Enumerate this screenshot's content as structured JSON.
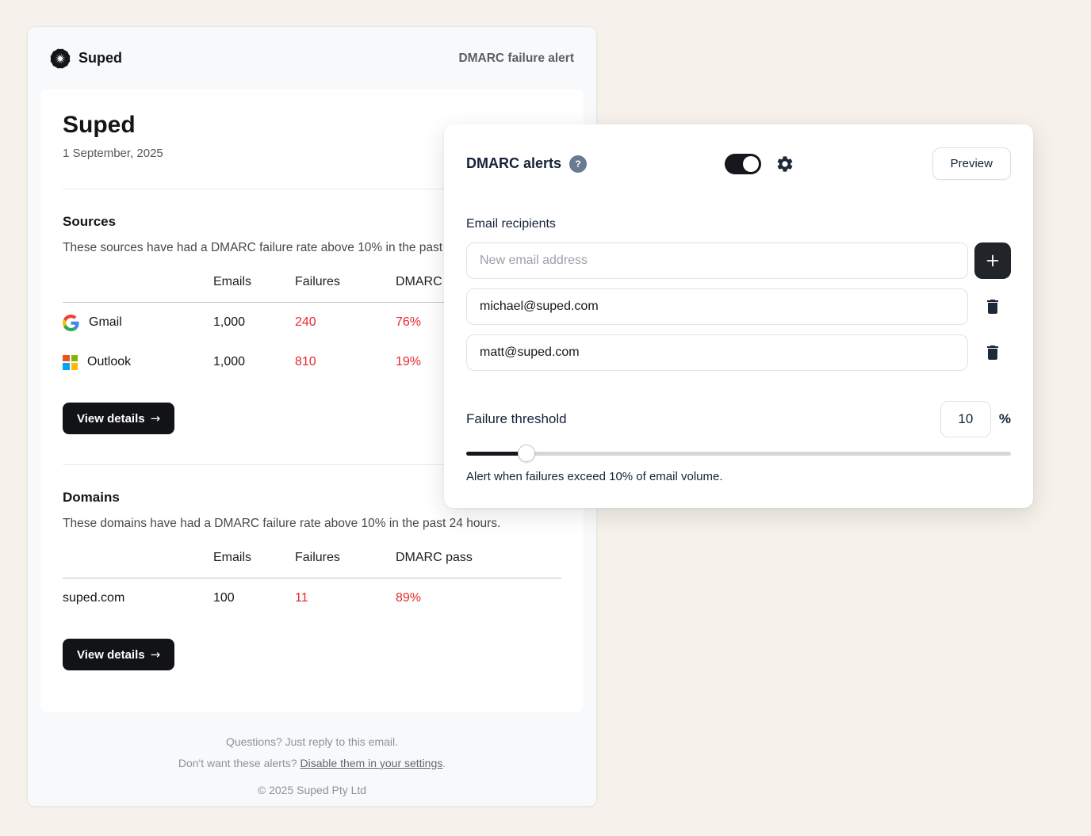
{
  "colors": {
    "page_background": "#f6f1ea",
    "alert_red": "#e8282c",
    "dark_button": "#121316",
    "panel_navy": "#152238",
    "help_badge_slate": "#6b7a90",
    "microsoft_squares": [
      "#f25022",
      "#7fba00",
      "#00a4ef",
      "#ffb900"
    ]
  },
  "ui": {
    "arrow_right": "→",
    "plus": "+"
  },
  "email": {
    "brand": "Suped",
    "header_right": "DMARC failure alert",
    "title": "Suped",
    "date": "1 September, 2025",
    "sources": {
      "heading": "Sources",
      "description": "These sources have had a DMARC failure rate above 10% in the past 24 hours.",
      "columns": [
        "Emails",
        "Failures",
        "DMARC pass"
      ],
      "rows": [
        {
          "name": "Gmail",
          "emails": "1,000",
          "failures": "240",
          "dmarc_pass": "76%"
        },
        {
          "name": "Outlook",
          "emails": "1,000",
          "failures": "810",
          "dmarc_pass": "19%"
        }
      ],
      "view_details_label": "View details"
    },
    "domains": {
      "heading": "Domains",
      "description": "These domains have had a DMARC failure rate above 10% in the past 24 hours.",
      "columns": [
        "Emails",
        "Failures",
        "DMARC pass"
      ],
      "rows": [
        {
          "name": "suped.com",
          "emails": "100",
          "failures": "11",
          "dmarc_pass": "89%"
        }
      ],
      "view_details_label": "View details"
    },
    "footer": {
      "line1": "Questions? Just reply to this email.",
      "line2_prefix": "Don't want these alerts? ",
      "line2_link": "Disable them in your settings",
      "line2_suffix": ".",
      "copyright": "© 2025 Suped Pty Ltd"
    }
  },
  "panel": {
    "title": "DMARC alerts",
    "help_badge": "?",
    "toggle_state": "on",
    "preview_label": "Preview",
    "recipients": {
      "label": "Email recipients",
      "new_placeholder": "New email address",
      "emails": [
        "michael@suped.com",
        "matt@suped.com"
      ]
    },
    "threshold": {
      "label": "Failure threshold",
      "value": "10",
      "unit": "%",
      "slider_percent": 11,
      "help_text": "Alert when failures exceed 10% of email volume."
    }
  }
}
